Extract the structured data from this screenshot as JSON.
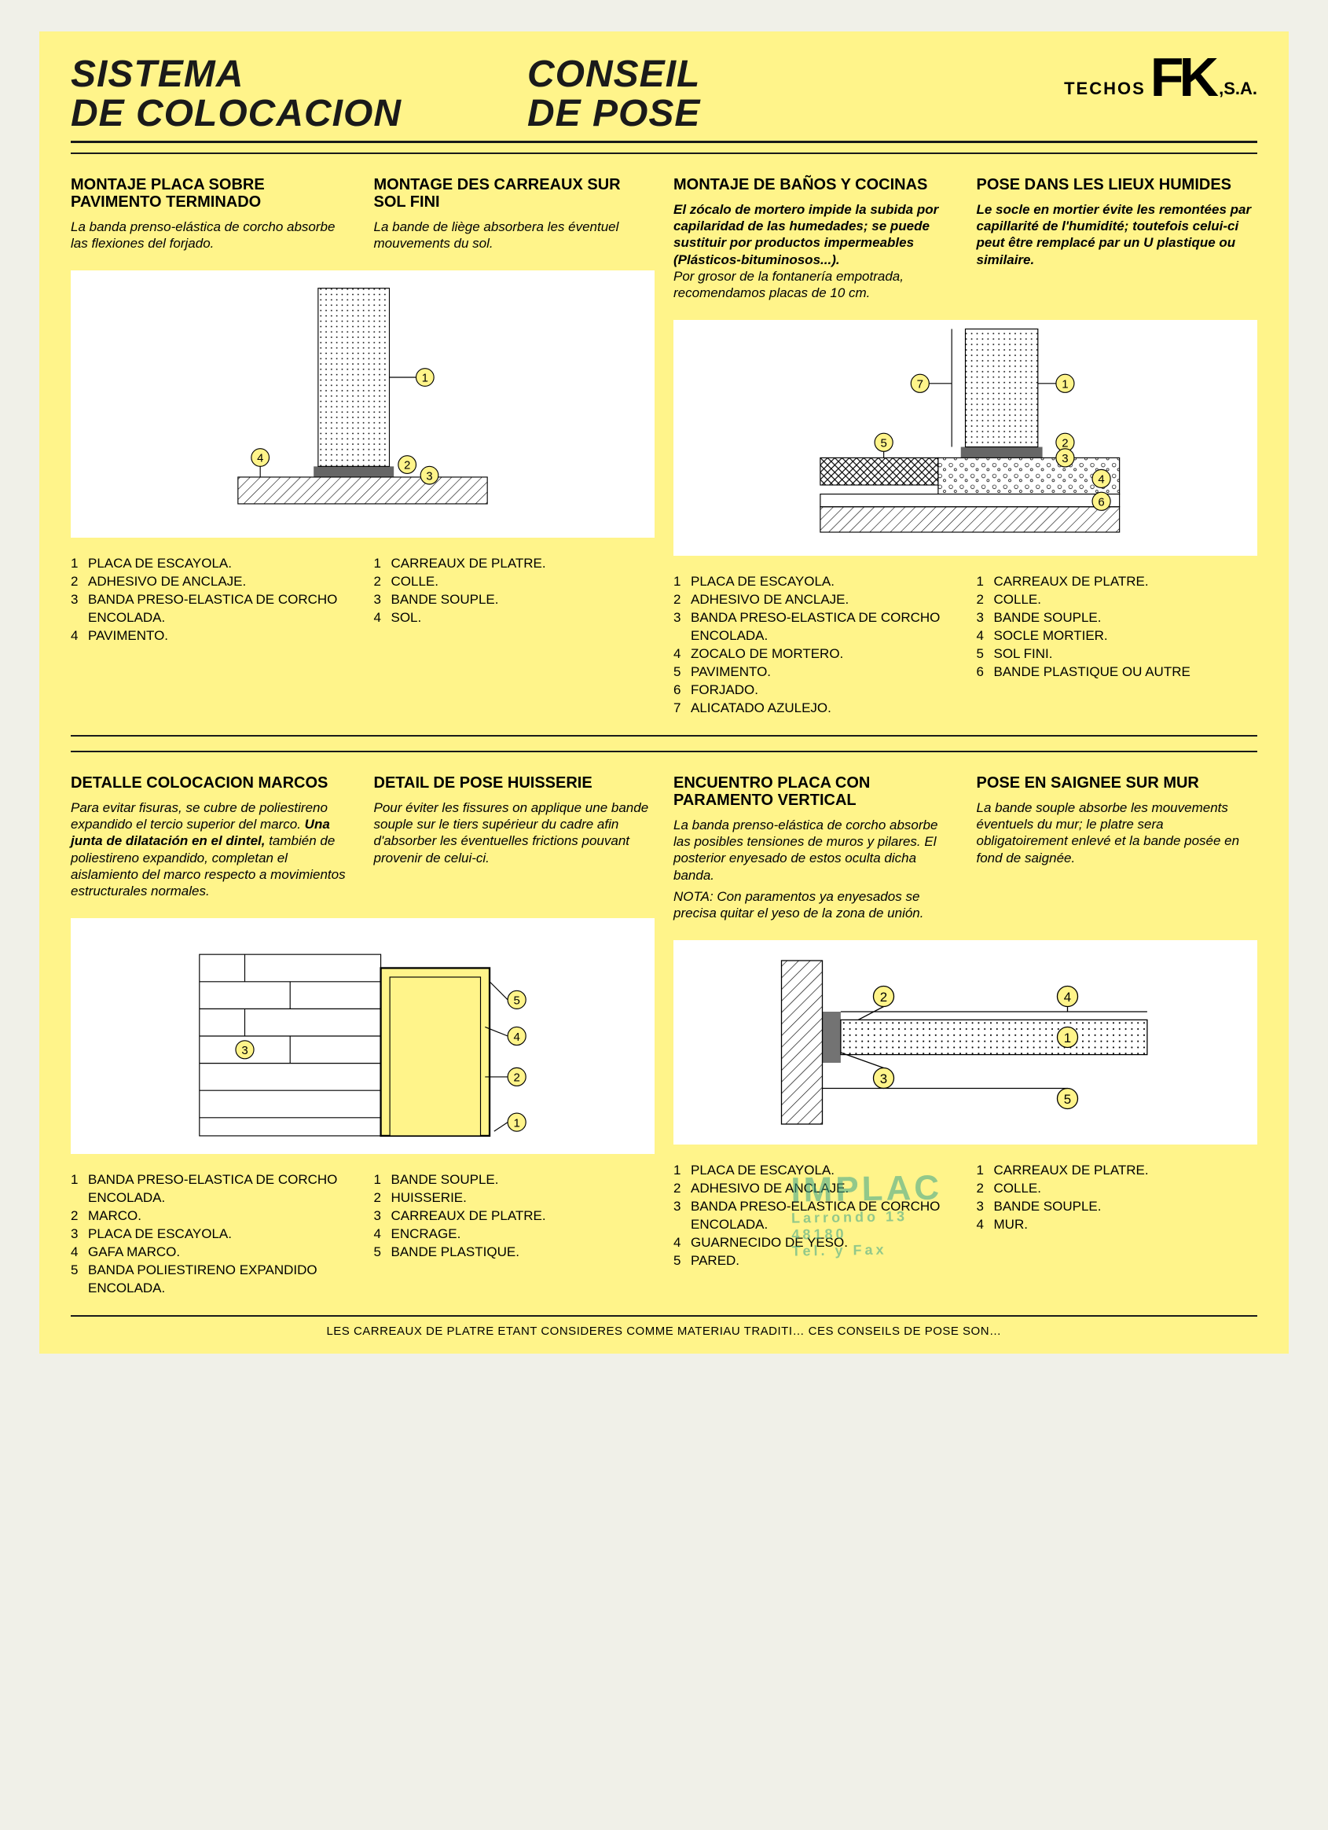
{
  "colors": {
    "page_bg": "#fff48a",
    "text": "#1a1a1a",
    "diagram_bg": "#ffffff",
    "rule": "#1a1a1a",
    "stamp": "#3aa58a"
  },
  "header": {
    "title_left_line1": "SISTEMA",
    "title_left_line2": "DE COLOCACION",
    "title_right_line1": "CONSEIL",
    "title_right_line2": "DE POSE",
    "logo_prefix": "TECHOS",
    "logo_text": "FK",
    "logo_suffix": ",S.A."
  },
  "sections": {
    "s1": {
      "es_title": "MONTAJE PLACA SOBRE PAVIMENTO TERMINADO",
      "es_body": "La banda prenso-elástica de corcho absorbe las flexiones del forjado.",
      "fr_title": "MONTAGE DES CARREAUX SUR SOL FINI",
      "fr_body": "La bande de liège absorbera les éventuel mouvements du sol.",
      "legend_es": [
        "PLACA DE ESCAYOLA.",
        "ADHESIVO DE ANCLAJE.",
        "BANDA PRESO-ELASTICA DE CORCHO ENCOLADA.",
        "PAVIMENTO."
      ],
      "legend_fr": [
        "CARREAUX DE PLATRE.",
        "COLLE.",
        "BANDE SOUPLE.",
        "SOL."
      ],
      "callouts": [
        "1",
        "2",
        "3",
        "4"
      ]
    },
    "s2": {
      "es_title": "MONTAJE DE BAÑOS Y COCINAS",
      "es_body_bold": "El zócalo de mortero impide la subida por capilaridad de las humedades; se puede sustituir por productos impermeables (Plásticos-bituminosos...).",
      "es_body_rest": "Por grosor de la fontanería empotrada, recomendamos placas de 10 cm.",
      "fr_title": "POSE DANS LES LIEUX HUMIDES",
      "fr_body": "Le socle en mortier évite les remontées par capillarité de l'humidité; toutefois celui-ci peut être remplacé par un U plastique ou similaire.",
      "legend_es": [
        "PLACA DE ESCAYOLA.",
        "ADHESIVO DE ANCLAJE.",
        "BANDA PRESO-ELASTICA DE CORCHO ENCOLADA.",
        "ZOCALO DE MORTERO.",
        "PAVIMENTO.",
        "FORJADO.",
        "ALICATADO AZULEJO."
      ],
      "legend_fr": [
        "CARREAUX DE PLATRE.",
        "COLLE.",
        "BANDE SOUPLE.",
        "SOCLE MORTIER.",
        "SOL FINI.",
        "BANDE PLASTIQUE OU AUTRE"
      ],
      "callouts": [
        "1",
        "2",
        "3",
        "4",
        "5",
        "6",
        "7"
      ]
    },
    "s3": {
      "es_title": "DETALLE COLOCACION MARCOS",
      "es_body_pre": "Para evitar fisuras, se cubre de poliestireno expandido el tercio superior del marco. ",
      "es_body_bold": "Una junta de dilatación en el dintel,",
      "es_body_post": " también de poliestireno expandido, completan el aislamiento del marco respecto a movimientos estructurales normales.",
      "fr_title": "DETAIL DE POSE HUISSERIE",
      "fr_body": "Pour éviter les fissures on applique une bande souple sur le tiers supérieur du cadre afin d'absorber les éventuelles frictions pouvant provenir de celui-ci.",
      "legend_es": [
        "BANDA PRESO-ELASTICA DE CORCHO ENCOLADA.",
        "MARCO.",
        "PLACA DE ESCAYOLA.",
        "GAFA MARCO.",
        "BANDA POLIESTIRENO EXPANDIDO ENCOLADA."
      ],
      "legend_fr": [
        "BANDE SOUPLE.",
        "HUISSERIE.",
        "CARREAUX DE PLATRE.",
        "ENCRAGE.",
        "BANDE PLASTIQUE."
      ],
      "callouts": [
        "1",
        "2",
        "3",
        "4",
        "5"
      ]
    },
    "s4": {
      "es_title": "ENCUENTRO PLACA CON PARAMENTO VERTICAL",
      "es_body": "La banda prenso-elástica de corcho absorbe las posibles tensiones de muros y pilares. El posterior enyesado de estos oculta dicha banda.",
      "es_note": "NOTA: Con paramentos ya enyesados se precisa quitar el yeso de la zona de unión.",
      "fr_title": "POSE EN SAIGNEE SUR MUR",
      "fr_body": "La bande souple absorbe les mouvements éventuels du mur; le platre sera obligatoirement enlevé et la bande posée en fond de saignée.",
      "legend_es": [
        "PLACA DE ESCAYOLA.",
        "ADHESIVO DE ANCLAJE.",
        "BANDA PRESO-ELASTICA DE CORCHO ENCOLADA.",
        "GUARNECIDO DE YESO.",
        "PARED."
      ],
      "legend_fr": [
        "CARREAUX DE PLATRE.",
        "COLLE.",
        "BANDE SOUPLE.",
        "MUR."
      ],
      "callouts": [
        "1",
        "2",
        "3",
        "4",
        "5"
      ]
    }
  },
  "stamp": {
    "name": "IMPLAC",
    "line2": "Larrondo 13",
    "line3": "48180",
    "line4": "Tel. y Fax"
  },
  "footer": "LES CARREAUX DE PLATRE ETANT CONSIDERES COMME MATERIAU TRADITI…   CES CONSEILS DE POSE SON…"
}
